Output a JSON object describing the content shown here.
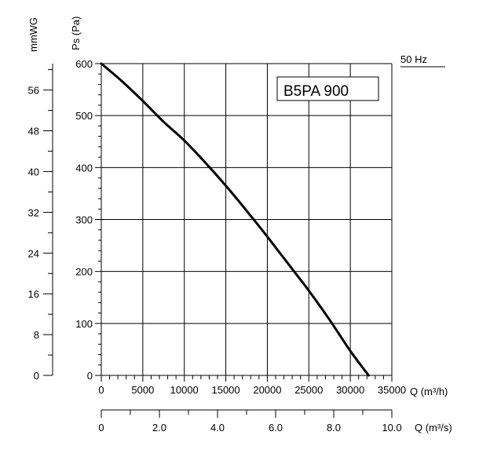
{
  "chart_data": {
    "type": "line",
    "title": "B5PA 900",
    "frequency_label": "50 Hz",
    "ylabel": "Ps (Pa)",
    "ylabel_secondary": "mmWG",
    "xlabel": "Q (m³/h)",
    "xlabel_secondary": "Q (m³/s)",
    "xlim": [
      0,
      35000
    ],
    "ylim": [
      0,
      600
    ],
    "x_ticks": [
      0,
      5000,
      10000,
      15000,
      20000,
      25000,
      30000,
      35000
    ],
    "x_tick_labels": [
      "0",
      "5000",
      "10000",
      "15000",
      "20000",
      "25000",
      "30000",
      "35000"
    ],
    "y_ticks": [
      0,
      100,
      200,
      300,
      400,
      500,
      600
    ],
    "y_tick_labels": [
      "0",
      "100",
      "200",
      "300",
      "400",
      "500",
      "600"
    ],
    "secondary_y_ticks": [
      0,
      8,
      16,
      24,
      32,
      40,
      48,
      56
    ],
    "secondary_y_tick_labels": [
      "0",
      "8",
      "16",
      "24",
      "32",
      "40",
      "48",
      "56"
    ],
    "secondary_x_ticks": [
      0,
      2.0,
      4.0,
      6.0,
      8.0,
      10.0
    ],
    "secondary_x_tick_labels": [
      "0",
      "2.0",
      "4.0",
      "6.0",
      "8.0",
      "10.0"
    ],
    "grid": true,
    "series": [
      {
        "x": [
          0,
          2500,
          5000,
          7500,
          10000,
          12500,
          15000,
          17500,
          20000,
          22500,
          25000,
          27500,
          30000,
          32200
        ],
        "values": [
          600,
          566,
          528,
          488,
          452,
          410,
          365,
          317,
          267,
          215,
          163,
          107,
          47,
          0
        ]
      }
    ]
  }
}
